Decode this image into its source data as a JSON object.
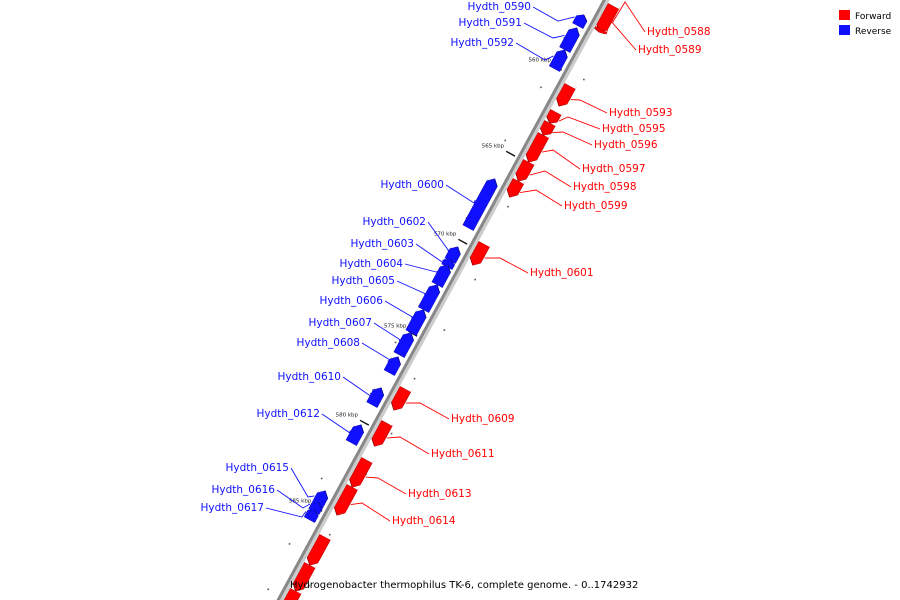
{
  "caption": "Hydrogenobacter thermophilus TK-6, complete genome. - 0..1742932",
  "colors": {
    "forward": "#ff0000",
    "reverse": "#1010ff",
    "backbone": "#888888"
  },
  "legend": [
    {
      "label": "Forward",
      "strand": "forward"
    },
    {
      "label": "Reverse",
      "strand": "reverse"
    }
  ],
  "ticks": [
    "560 kbp",
    "565 kbp",
    "570 kbp",
    "575 kbp",
    "580 kbp",
    "585 kbp"
  ],
  "genes": [
    {
      "name": "Hydth_0588",
      "strand": "forward"
    },
    {
      "name": "Hydth_0589",
      "strand": "forward"
    },
    {
      "name": "Hydth_0590",
      "strand": "reverse"
    },
    {
      "name": "Hydth_0591",
      "strand": "reverse"
    },
    {
      "name": "Hydth_0592",
      "strand": "reverse"
    },
    {
      "name": "Hydth_0593",
      "strand": "forward"
    },
    {
      "name": "Hydth_0595",
      "strand": "forward"
    },
    {
      "name": "Hydth_0596",
      "strand": "forward"
    },
    {
      "name": "Hydth_0597",
      "strand": "forward"
    },
    {
      "name": "Hydth_0598",
      "strand": "forward"
    },
    {
      "name": "Hydth_0599",
      "strand": "forward"
    },
    {
      "name": "Hydth_0600",
      "strand": "reverse"
    },
    {
      "name": "Hydth_0601",
      "strand": "forward"
    },
    {
      "name": "Hydth_0602",
      "strand": "reverse"
    },
    {
      "name": "Hydth_0603",
      "strand": "reverse"
    },
    {
      "name": "Hydth_0604",
      "strand": "reverse"
    },
    {
      "name": "Hydth_0605",
      "strand": "reverse"
    },
    {
      "name": "Hydth_0606",
      "strand": "reverse"
    },
    {
      "name": "Hydth_0607",
      "strand": "reverse"
    },
    {
      "name": "Hydth_0608",
      "strand": "reverse"
    },
    {
      "name": "Hydth_0609",
      "strand": "forward"
    },
    {
      "name": "Hydth_0610",
      "strand": "reverse"
    },
    {
      "name": "Hydth_0611",
      "strand": "forward"
    },
    {
      "name": "Hydth_0612",
      "strand": "reverse"
    },
    {
      "name": "Hydth_0613",
      "strand": "forward"
    },
    {
      "name": "Hydth_0614",
      "strand": "forward"
    },
    {
      "name": "Hydth_0615",
      "strand": "reverse"
    },
    {
      "name": "Hydth_0616",
      "strand": "reverse"
    },
    {
      "name": "Hydth_0617",
      "strand": "reverse"
    }
  ]
}
